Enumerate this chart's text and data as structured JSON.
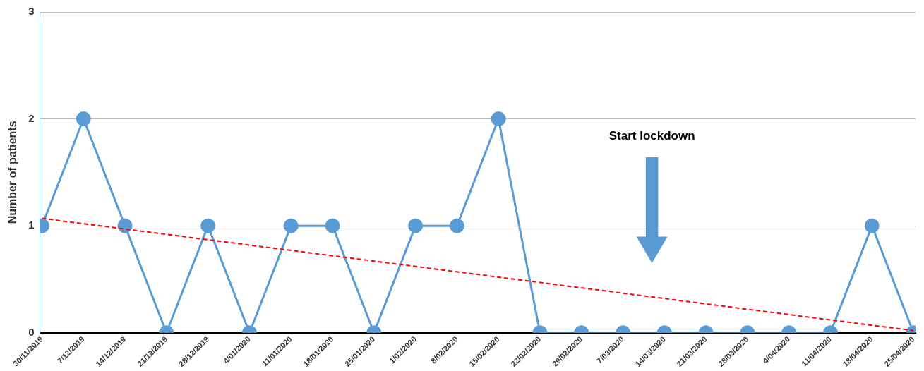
{
  "chart_data": {
    "type": "line",
    "ylabel": "Number of patients",
    "categories": [
      "30/11/2019",
      "7/12/2019",
      "14/12/2019",
      "21/12/2019",
      "28/12/2019",
      "4/01/2020",
      "11/01/2020",
      "18/01/2020",
      "25/01/2020",
      "1/02/2020",
      "8/02/2020",
      "15/02/2020",
      "22/02/2020",
      "29/02/2020",
      "7/03/2020",
      "14/03/2020",
      "21/03/2020",
      "28/03/2020",
      "4/04/2020",
      "11/04/2020",
      "18/04/2020",
      "25/04/2020"
    ],
    "series": [
      {
        "type": "line",
        "color": "#5b9bd5",
        "marker": "circle",
        "line_style": "solid",
        "values": [
          1,
          2,
          1,
          0,
          1,
          0,
          1,
          1,
          0,
          1,
          1,
          2,
          0,
          0,
          0,
          0,
          0,
          0,
          0,
          0,
          1,
          0
        ]
      },
      {
        "type": "line",
        "color": "#ff0000",
        "marker": "none",
        "line_style": "dashed",
        "x": [
          "30/11/2019",
          "25/04/2020"
        ],
        "values": [
          1.07,
          0.02
        ]
      }
    ],
    "ylim": [
      0,
      3
    ],
    "yticks": [
      0,
      1,
      2,
      3
    ],
    "grid": "y",
    "legend": false,
    "annotations": [
      "Start lockdown"
    ]
  }
}
